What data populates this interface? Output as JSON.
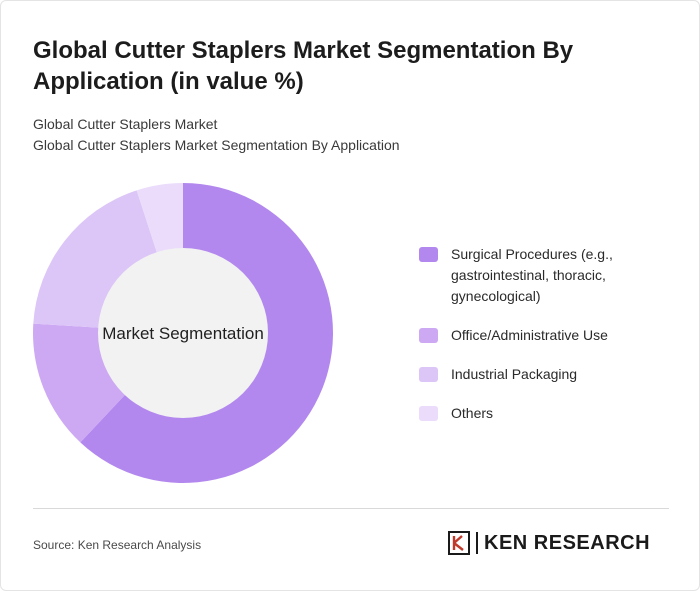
{
  "title": "Global Cutter Staplers Market Segmentation By Application (in value %)",
  "subtitle_line1": "Global Cutter Staplers Market",
  "subtitle_line2": "Global Cutter Staplers Market Segmentation By Application",
  "source": "Source: Ken Research Analysis",
  "brand": {
    "name": "KEN RESEARCH",
    "logo_icon": "ken-research-logo-icon"
  },
  "chart_data": {
    "type": "pie",
    "title": "Global Cutter Staplers Market Segmentation By Application (in value %)",
    "center_label": "Market Segmentation",
    "categories": [
      "Surgical Procedures (e.g., gastrointestinal, thoracic, gynecological)",
      "Office/Administrative Use",
      "Industrial Packaging",
      "Others"
    ],
    "values": [
      62,
      14,
      19,
      5
    ],
    "colors": [
      "#b388ee",
      "#cda8f3",
      "#dcc5f7",
      "#eadcfa"
    ],
    "legend_position": "right"
  }
}
